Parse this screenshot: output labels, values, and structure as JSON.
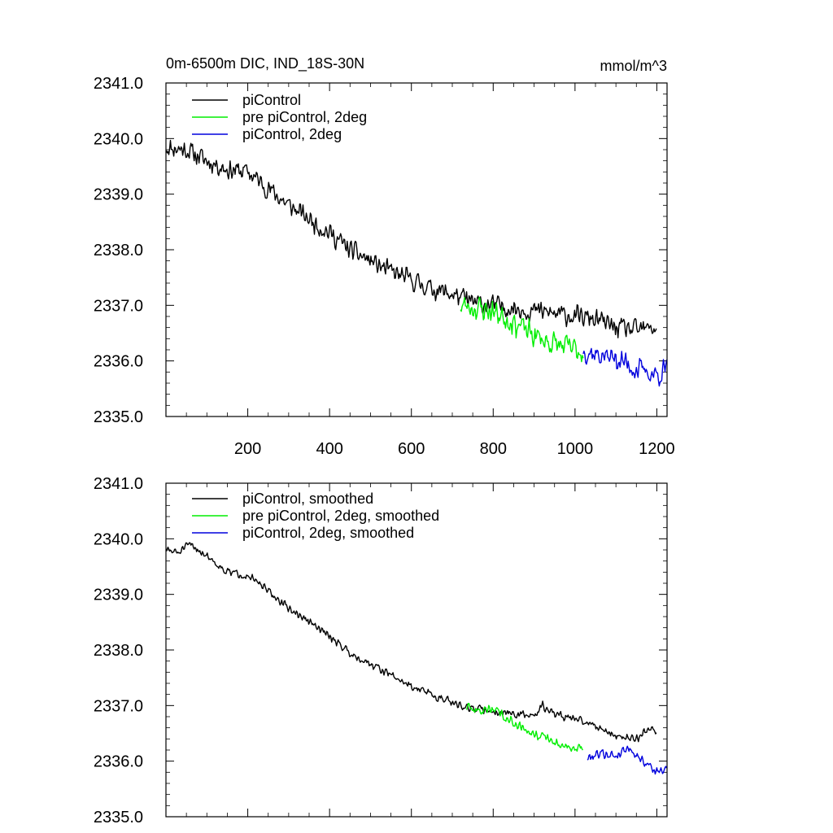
{
  "chart_data": [
    {
      "type": "line",
      "title": "0m-6500m DIC, IND_18S-30N",
      "units": "mmol/m^3",
      "xlim": [
        0,
        1225
      ],
      "ylim": [
        2335.0,
        2341.0
      ],
      "xticks": [
        200,
        400,
        600,
        800,
        1000,
        1200
      ],
      "xtick_labels": [
        "200",
        "400",
        "600",
        "800",
        "1000",
        "1200"
      ],
      "yticks": [
        2335.0,
        2336.0,
        2337.0,
        2338.0,
        2339.0,
        2340.0,
        2341.0
      ],
      "ytick_labels": [
        "2335.0",
        "2336.0",
        "2337.0",
        "2338.0",
        "2339.0",
        "2340.0",
        "2341.0"
      ],
      "series": [
        {
          "name": "piControl",
          "color": "#000000",
          "start": 1,
          "anchors": [
            [
              1,
              2339.85
            ],
            [
              50,
              2339.8
            ],
            [
              100,
              2339.6
            ],
            [
              150,
              2339.45
            ],
            [
              200,
              2339.4
            ],
            [
              250,
              2339.1
            ],
            [
              300,
              2338.8
            ],
            [
              350,
              2338.55
            ],
            [
              400,
              2338.3
            ],
            [
              450,
              2338.0
            ],
            [
              500,
              2337.8
            ],
            [
              550,
              2337.6
            ],
            [
              600,
              2337.45
            ],
            [
              650,
              2337.3
            ],
            [
              700,
              2337.2
            ],
            [
              750,
              2337.05
            ],
            [
              800,
              2337.0
            ],
            [
              850,
              2336.95
            ],
            [
              900,
              2336.9
            ],
            [
              950,
              2336.85
            ],
            [
              1000,
              2336.8
            ],
            [
              1050,
              2336.75
            ],
            [
              1100,
              2336.6
            ],
            [
              1150,
              2336.55
            ],
            [
              1200,
              2336.6
            ]
          ],
          "noise": 0.22,
          "seed": 11
        },
        {
          "name": "pre piControl, 2deg",
          "color": "#00ee00",
          "start": 720,
          "anchors": [
            [
              720,
              2337.0
            ],
            [
              760,
              2336.95
            ],
            [
              800,
              2336.9
            ],
            [
              850,
              2336.7
            ],
            [
              900,
              2336.45
            ],
            [
              950,
              2336.3
            ],
            [
              1000,
              2336.2
            ],
            [
              1020,
              2336.15
            ]
          ],
          "noise": 0.28,
          "seed": 23
        },
        {
          "name": "piControl, 2deg",
          "color": "#0000dd",
          "start": 1020,
          "anchors": [
            [
              1020,
              2336.2
            ],
            [
              1060,
              2336.1
            ],
            [
              1100,
              2336.05
            ],
            [
              1150,
              2335.85
            ],
            [
              1200,
              2335.75
            ],
            [
              1225,
              2335.85
            ]
          ],
          "noise": 0.26,
          "seed": 37
        }
      ]
    },
    {
      "type": "line",
      "title": "",
      "xlim": [
        0,
        1225
      ],
      "ylim": [
        2335.0,
        2341.0
      ],
      "yticks": [
        2335.0,
        2336.0,
        2337.0,
        2338.0,
        2339.0,
        2340.0,
        2341.0
      ],
      "ytick_labels": [
        "2335.0",
        "2336.0",
        "2337.0",
        "2338.0",
        "2339.0",
        "2340.0",
        "2341.0"
      ],
      "series": [
        {
          "name": "piControl, smoothed",
          "color": "#000000",
          "start": 1,
          "anchors": [
            [
              1,
              2339.8
            ],
            [
              30,
              2339.75
            ],
            [
              60,
              2339.9
            ],
            [
              100,
              2339.7
            ],
            [
              150,
              2339.4
            ],
            [
              200,
              2339.35
            ],
            [
              250,
              2339.05
            ],
            [
              300,
              2338.75
            ],
            [
              350,
              2338.5
            ],
            [
              400,
              2338.25
            ],
            [
              450,
              2337.95
            ],
            [
              500,
              2337.75
            ],
            [
              550,
              2337.55
            ],
            [
              600,
              2337.35
            ],
            [
              650,
              2337.2
            ],
            [
              700,
              2337.05
            ],
            [
              750,
              2336.95
            ],
            [
              800,
              2336.9
            ],
            [
              850,
              2336.85
            ],
            [
              900,
              2336.8
            ],
            [
              920,
              2337.0
            ],
            [
              950,
              2336.85
            ],
            [
              1000,
              2336.75
            ],
            [
              1050,
              2336.65
            ],
            [
              1100,
              2336.45
            ],
            [
              1150,
              2336.4
            ],
            [
              1180,
              2336.6
            ],
            [
              1200,
              2336.55
            ]
          ],
          "noise": 0.09,
          "seed": 51
        },
        {
          "name": "pre piControl, 2deg, smoothed",
          "color": "#00ee00",
          "start": 735,
          "anchors": [
            [
              735,
              2336.95
            ],
            [
              770,
              2336.9
            ],
            [
              800,
              2336.95
            ],
            [
              850,
              2336.7
            ],
            [
              900,
              2336.5
            ],
            [
              950,
              2336.35
            ],
            [
              1000,
              2336.2
            ],
            [
              1020,
              2336.25
            ]
          ],
          "noise": 0.1,
          "seed": 63
        },
        {
          "name": "piControl, 2deg, smoothed",
          "color": "#0000dd",
          "start": 1030,
          "anchors": [
            [
              1030,
              2336.05
            ],
            [
              1060,
              2336.15
            ],
            [
              1100,
              2336.1
            ],
            [
              1130,
              2336.25
            ],
            [
              1160,
              2336.05
            ],
            [
              1200,
              2335.8
            ],
            [
              1225,
              2335.85
            ]
          ],
          "noise": 0.1,
          "seed": 79
        }
      ]
    }
  ]
}
